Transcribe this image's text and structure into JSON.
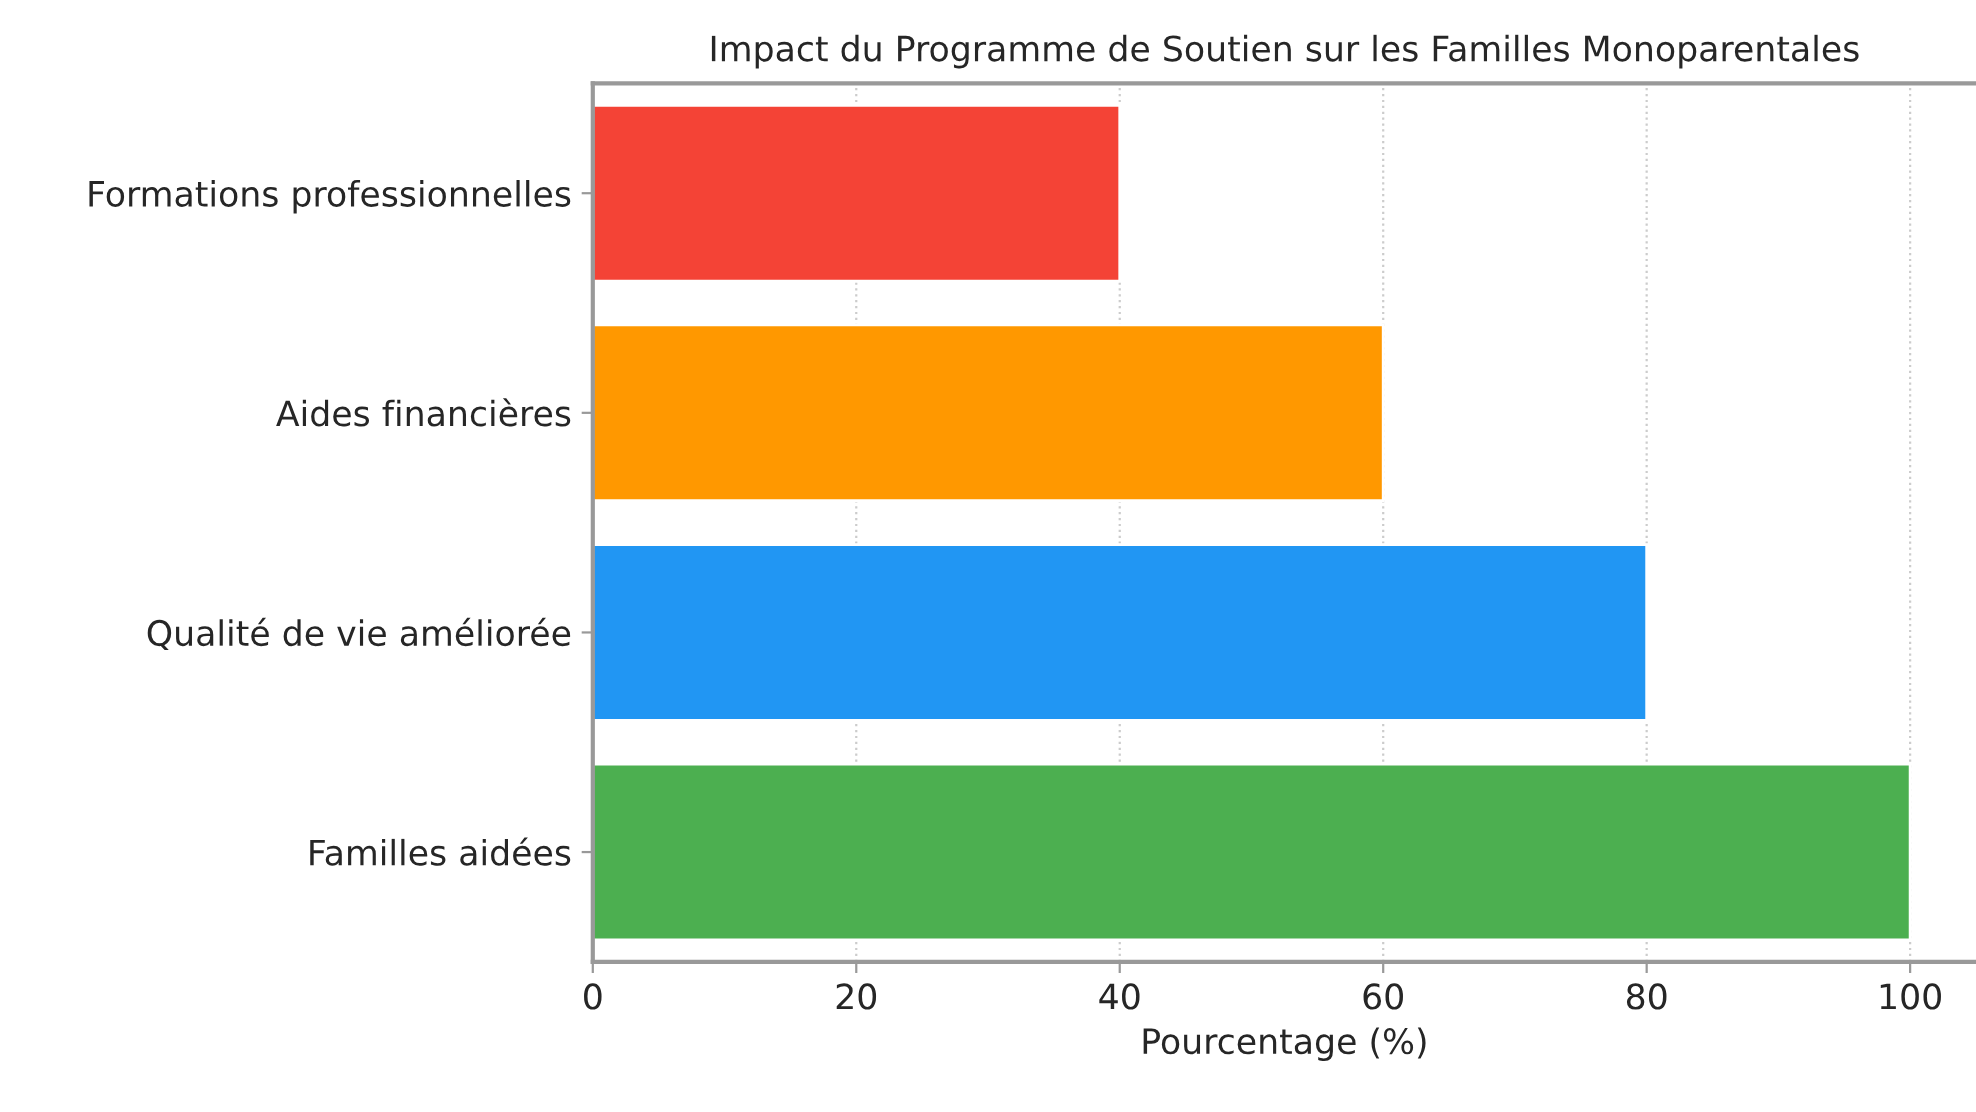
{
  "chart_data": {
    "type": "bar",
    "orientation": "horizontal",
    "title": "Impact du Programme de Soutien sur les Familles Monoparentales",
    "xlabel": "Pourcentage (%)",
    "categories": [
      "Formations professionnelles",
      "Aides financières",
      "Qualité de vie améliorée",
      "Familles aidées"
    ],
    "values": [
      40,
      60,
      80,
      100
    ],
    "colors": [
      "#f44336",
      "#ff9800",
      "#2196f3",
      "#4caf50"
    ],
    "xlim": [
      0,
      105
    ],
    "xticks": [
      0,
      20,
      40,
      60,
      80,
      100
    ],
    "grid": "x",
    "legend": false
  }
}
